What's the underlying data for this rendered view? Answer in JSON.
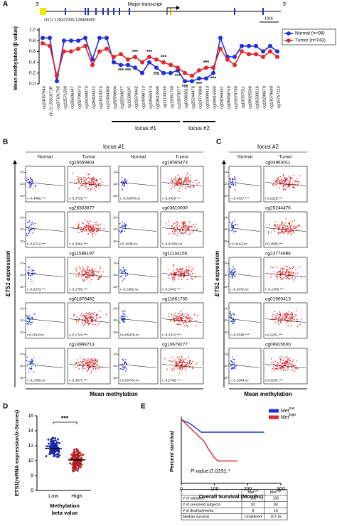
{
  "chart_data": [
    {
      "type": "line",
      "panel": "A",
      "gene_ends": [
        "3'",
        "5'"
      ],
      "transcript_label": "Major transcript",
      "region": "chr11:128327000-128458000",
      "scale_bar": "10kb",
      "ylabel": "Mean methylation (β value)",
      "categories": [
        "cg14057644",
        "ch.11.2651871R",
        "cg07101785",
        "cg12571580",
        "cg26606347",
        "cg02790372",
        "cg25049470",
        "cg26404422",
        "cg23518374",
        "cg12484366",
        "cg26559804",
        "cg26503877",
        "cg11588197",
        "cg01878462",
        "cg14998713",
        "cg18565473",
        "cg03610000",
        "cg11134155",
        "cg11861730",
        "cg10679277",
        "cg03963011",
        "cg25244476",
        "cg23774988",
        "cg01900413",
        "cg09915500",
        "cg04065451",
        "cg06458748",
        "cg15578788",
        "cg01557511",
        "cg09025506",
        "cg06330216",
        "cg10290679",
        "cg13079689",
        "cg18757114"
      ],
      "series": [
        {
          "name": "Normal (n=98)",
          "color": "#1f2fd6",
          "values": [
            0.85,
            0.85,
            0.05,
            0.8,
            0.8,
            0.8,
            0.85,
            0.45,
            0.85,
            0.85,
            0.4,
            0.35,
            0.35,
            0.3,
            0.2,
            0.4,
            0.3,
            0.2,
            0.2,
            0.25,
            0.05,
            0.05,
            0.1,
            0.1,
            0.2,
            0.85,
            0.5,
            0.5,
            0.7,
            0.7,
            0.7,
            0.6,
            0.7,
            0.6
          ]
        },
        {
          "name": "Tumor (n=743)",
          "color": "#e3262b",
          "values": [
            0.75,
            0.7,
            0.15,
            0.6,
            0.6,
            0.65,
            0.7,
            0.35,
            0.6,
            0.65,
            0.5,
            0.55,
            0.45,
            0.5,
            0.4,
            0.5,
            0.45,
            0.4,
            0.35,
            0.3,
            0.2,
            0.15,
            0.25,
            0.3,
            0.3,
            0.65,
            0.45,
            0.35,
            0.6,
            0.55,
            0.55,
            0.5,
            0.6,
            0.5
          ]
        }
      ],
      "ylim": [
        0,
        1
      ],
      "yticks": [
        {
          "value": 0,
          "label": "0.0"
        },
        0.2,
        0.4,
        0.6,
        0.8,
        {
          "value": 1,
          "label": "1.0"
        }
      ],
      "annotations": [
        "***",
        "***",
        "***",
        "***",
        "***",
        "ns",
        "***",
        "***",
        "***",
        "***",
        "***"
      ],
      "loci": [
        "locus #1",
        "locus #2"
      ]
    },
    {
      "type": "scatter_grid",
      "panel": "B",
      "title": "locus #1",
      "column_headers": [
        "Normal",
        "Tumor",
        "Normal",
        "Tumor"
      ],
      "ylabel": "ETS1 expression",
      "xlabel": "Mean methylation",
      "ylim": [
        9,
        15
      ],
      "yticks": [
        10,
        12,
        14
      ],
      "normal_color": "#1f2fd6",
      "tumor_color": "#e3262b",
      "probes": [
        {
          "name": "cg26559804",
          "r_normal": "r:-0.4466,***",
          "r_tumor": "r:-0.3726,***"
        },
        {
          "name": "cg26503877",
          "r_normal": "r:-0.6712,***",
          "r_tumor": "r:-0.3362,***"
        },
        {
          "name": "cg11588197",
          "r_normal": "r:-0.6373,***",
          "r_tumor": "r:-0.2703,***"
        },
        {
          "name": "cg01878462",
          "r_normal": "r:0.1519,ns",
          "r_tumor": "r:-0.1724,***"
        },
        {
          "name": "cg14998713",
          "r_normal": "r:-0.1506,ns",
          "r_tumor": "r:-0.3677,***"
        },
        {
          "name": "cg18565473",
          "r_normal": "r:-0.06976,ns",
          "r_tumor": "r:-0.3429,***"
        },
        {
          "name": "cg03610000",
          "r_normal": "r:0.1038,ns",
          "r_tumor": "r:-0.01591,ns"
        },
        {
          "name": "cg11134155",
          "r_normal": "r:-0.1882,ns",
          "r_tumor": "r:-0.1943,***"
        },
        {
          "name": "cg11861730",
          "r_normal": "r:0.05429,ns",
          "r_tumor": "r:-0.2371,***"
        },
        {
          "name": "cg10679277",
          "r_normal": "r:0.00744,ns",
          "r_tumor": "r:-0.2748,***"
        }
      ]
    },
    {
      "type": "scatter_grid",
      "panel": "C",
      "title": "locus #2",
      "column_headers": [
        "Normal",
        "Tumor"
      ],
      "ylabel": "ETS1 expression",
      "xlabel": "Mean methylation",
      "ylim": [
        9,
        15
      ],
      "yticks": [
        10,
        12,
        14
      ],
      "normal_color": "#1f2fd6",
      "tumor_color": "#e3262b",
      "probes": [
        {
          "name": "cg03963011",
          "r_normal": "r:-0.4317,***",
          "r_tumor": "r:0.2218,***"
        },
        {
          "name": "cg25244476",
          "r_normal": "r:0.1163,ns",
          "r_tumor": "r:0.1696,***"
        },
        {
          "name": "cg23774988",
          "r_normal": "r:-0.2072,ns",
          "r_tumor": "r:-0.1450,***"
        },
        {
          "name": "cg01900413",
          "r_normal": "r:-0.5538,***",
          "r_tumor": "r:0.2151,***"
        },
        {
          "name": "cg09915500",
          "r_normal": "r:-0.1044,ns",
          "r_tumor": "r:0.3255,***"
        }
      ]
    },
    {
      "type": "dot_plot",
      "panel": "D",
      "ylabel": "ETS1(mRNA expression/z-Scores)",
      "xlabel": [
        "Methylation",
        "beta value"
      ],
      "categories": [
        "Low",
        "High"
      ],
      "colors": [
        "#1f2fd6",
        "#e3262b"
      ],
      "means": [
        11.6,
        10.1
      ],
      "ylim": [
        6,
        16
      ],
      "yticks": [
        6,
        8,
        10,
        12,
        14,
        16
      ],
      "significance": "***"
    },
    {
      "type": "survival",
      "panel": "E",
      "ylabel": "Percent survival",
      "xlabel": "Overall Survival (Months)",
      "p_value": "P-value:0.0191;*",
      "xlim": [
        0,
        300
      ],
      "xticks": [
        0,
        100,
        200,
        300
      ],
      "ylim": [
        0,
        100
      ],
      "series": [
        {
          "name": "Met",
          "name_sup": "low",
          "color": "#1f2fd6",
          "x": [
            0,
            10,
            20,
            30,
            40,
            50,
            60,
            250
          ],
          "y": [
            100,
            97,
            95,
            92,
            88,
            84,
            80,
            80
          ]
        },
        {
          "name": "Met",
          "name_sup": "high",
          "color": "#e3262b",
          "x": [
            0,
            10,
            20,
            30,
            50,
            70,
            80,
            100,
            110,
            170
          ],
          "y": [
            100,
            95,
            90,
            85,
            75,
            65,
            55,
            40,
            35,
            35
          ]
        }
      ],
      "table": {
        "rows": [
          [
            "# of samples",
            100,
            100
          ],
          [
            "# of censored subjects",
            92,
            84
          ],
          [
            "# of deaths/events",
            8,
            16
          ],
          [
            "Median survival",
            "Undefined",
            107.16
          ]
        ]
      }
    }
  ]
}
